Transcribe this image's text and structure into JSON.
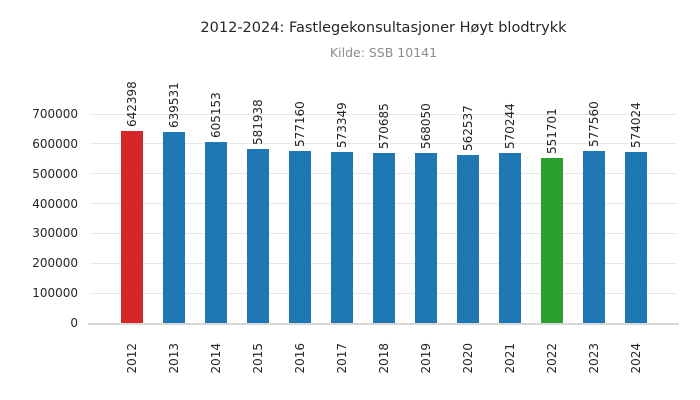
{
  "chart_data": {
    "type": "bar",
    "title": "2012-2024: Fastlegekonsultasjoner Høyt blodtrykk",
    "subtitle": "Kilde: SSB 10141",
    "categories": [
      "2012",
      "2013",
      "2014",
      "2015",
      "2016",
      "2017",
      "2018",
      "2019",
      "2020",
      "2021",
      "2022",
      "2023",
      "2024"
    ],
    "values": [
      642398,
      639531,
      605153,
      581938,
      577160,
      573349,
      570685,
      568050,
      562537,
      570244,
      551701,
      577560,
      574024
    ],
    "bar_colors": [
      "#d62728",
      "#1f77b4",
      "#1f77b4",
      "#1f77b4",
      "#1f77b4",
      "#1f77b4",
      "#1f77b4",
      "#1f77b4",
      "#1f77b4",
      "#1f77b4",
      "#2ca02c",
      "#1f77b4",
      "#1f77b4"
    ],
    "value_labels_rotation": 90,
    "xlabel": "",
    "ylabel": "",
    "ylim": [
      0,
      700000
    ],
    "yticks": [
      0,
      100000,
      200000,
      300000,
      400000,
      500000,
      600000,
      700000
    ],
    "grid": true,
    "legend_position": "none",
    "colors": {
      "default_bar": "#1f77b4",
      "highlight_first_bar": "#d62728",
      "highlight_2022_bar": "#2ca02c",
      "grid": "#e8e8e8",
      "baseline": "#d8d8d8",
      "title_text": "#262626",
      "subtitle_text": "#8c8c8c",
      "tick_text": "#262626",
      "value_label_text": "#262626",
      "background": "#ffffff"
    }
  }
}
